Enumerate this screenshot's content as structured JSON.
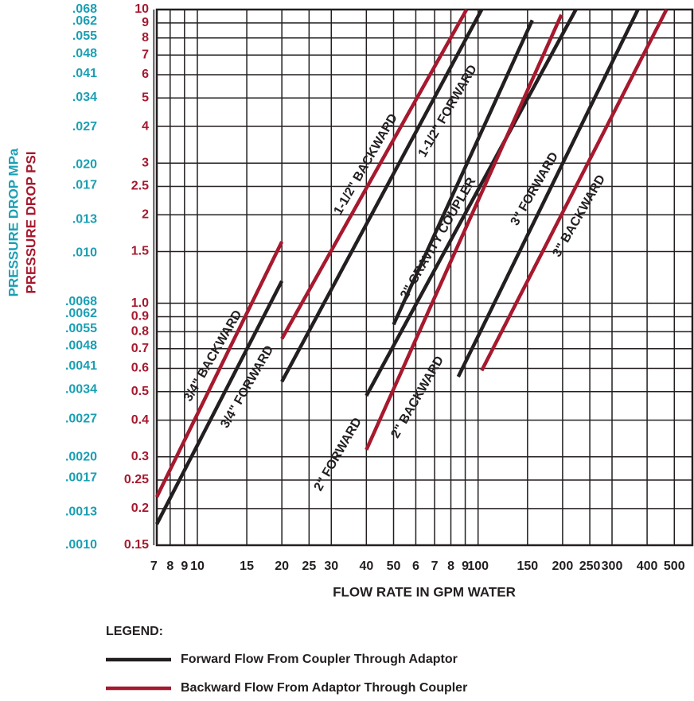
{
  "chart_data": {
    "type": "line",
    "log_x": true,
    "log_y": true,
    "grid": true,
    "x_label": "FLOW RATE IN GPM WATER",
    "y_label": "PRESSURE DROP PSI",
    "y2_label": "PRESSURE DROP MPa",
    "y_color": "#a6192e",
    "y2_color": "#1a9fb3",
    "xlim": [
      7.17,
      580
    ],
    "xticks": [
      7,
      8,
      9,
      10,
      15,
      20,
      25,
      30,
      40,
      50,
      {
        "value": 60,
        "label": "6"
      },
      {
        "value": 70,
        "label": "7"
      },
      {
        "value": 80,
        "label": "8"
      },
      {
        "value": 90,
        "label": "9"
      },
      100,
      150,
      200,
      250,
      300,
      400,
      500
    ],
    "ylim": [
      0.15,
      10
    ],
    "yticks": [
      0.15,
      0.2,
      0.25,
      0.3,
      0.4,
      0.5,
      0.6,
      0.7,
      0.8,
      0.9,
      {
        "value": 1.0,
        "label": "1.0"
      },
      1.5,
      2,
      2.5,
      3,
      4,
      5,
      6,
      7,
      8,
      9,
      10
    ],
    "y2lim": [
      0.001,
      0.068
    ],
    "y2ticks": [
      {
        "value": 0.001,
        "label": ".0010"
      },
      {
        "value": 0.0013,
        "label": ".0013"
      },
      {
        "value": 0.0017,
        "label": ".0017"
      },
      {
        "value": 0.002,
        "label": ".0020"
      },
      {
        "value": 0.0027,
        "label": ".0027"
      },
      {
        "value": 0.0034,
        "label": ".0034"
      },
      {
        "value": 0.0041,
        "label": ".0041"
      },
      {
        "value": 0.0048,
        "label": ".0048"
      },
      {
        "value": 0.0055,
        "label": ".0055"
      },
      {
        "value": 0.0062,
        "label": ".0062"
      },
      {
        "value": 0.0068,
        "label": ".0068"
      },
      {
        "value": 0.01,
        "label": ".010"
      },
      {
        "value": 0.013,
        "label": ".013"
      },
      {
        "value": 0.017,
        "label": ".017"
      },
      {
        "value": 0.02,
        "label": ".020"
      },
      {
        "value": 0.027,
        "label": ".027"
      },
      {
        "value": 0.034,
        "label": ".034"
      },
      {
        "value": 0.041,
        "label": ".041"
      },
      {
        "value": 0.048,
        "label": ".048"
      },
      {
        "value": 0.055,
        "label": ".055"
      },
      {
        "value": 0.062,
        "label": ".062"
      },
      {
        "value": 0.068,
        "label": ".068"
      }
    ],
    "series": [
      {
        "name": "3/4\" BACKWARD",
        "color": "#a6192e",
        "x": [
          7.17,
          20
        ],
        "values": [
          0.219,
          1.62
        ]
      },
      {
        "name": "3/4\" FORWARD",
        "color": "#231f20",
        "x": [
          7.17,
          20
        ],
        "values": [
          0.177,
          1.19
        ]
      },
      {
        "name": "1-1/2\" BACKWARD",
        "color": "#a6192e",
        "x": [
          20,
          91
        ],
        "values": [
          0.757,
          10
        ]
      },
      {
        "name": "1-1/2\" FORWARD",
        "color": "#231f20",
        "x": [
          20,
          103
        ],
        "values": [
          0.541,
          10
        ]
      },
      {
        "name": "2\" GRAVITY COUPLER",
        "color": "#231f20",
        "x": [
          50,
          156
        ],
        "values": [
          0.846,
          9.2
        ]
      },
      {
        "name": "2\" FORWARD",
        "color": "#231f20",
        "x": [
          40,
          223
        ],
        "values": [
          0.484,
          10
        ]
      },
      {
        "name": "2\" BACKWARD",
        "color": "#a6192e",
        "x": [
          40,
          198
        ],
        "values": [
          0.317,
          9.6
        ]
      },
      {
        "name": "3\" FORWARD",
        "color": "#231f20",
        "x": [
          85,
          371
        ],
        "values": [
          0.562,
          10
        ]
      },
      {
        "name": "3\" BACKWARD",
        "color": "#a6192e",
        "x": [
          103,
          469
        ],
        "values": [
          0.59,
          10
        ]
      }
    ],
    "legend_title": "LEGEND:",
    "legend": [
      {
        "label": "Forward Flow From Coupler Through Adaptor",
        "color": "#231f20"
      },
      {
        "label": "Backward Flow From Adaptor Through Coupler",
        "color": "#a6192e"
      }
    ]
  }
}
